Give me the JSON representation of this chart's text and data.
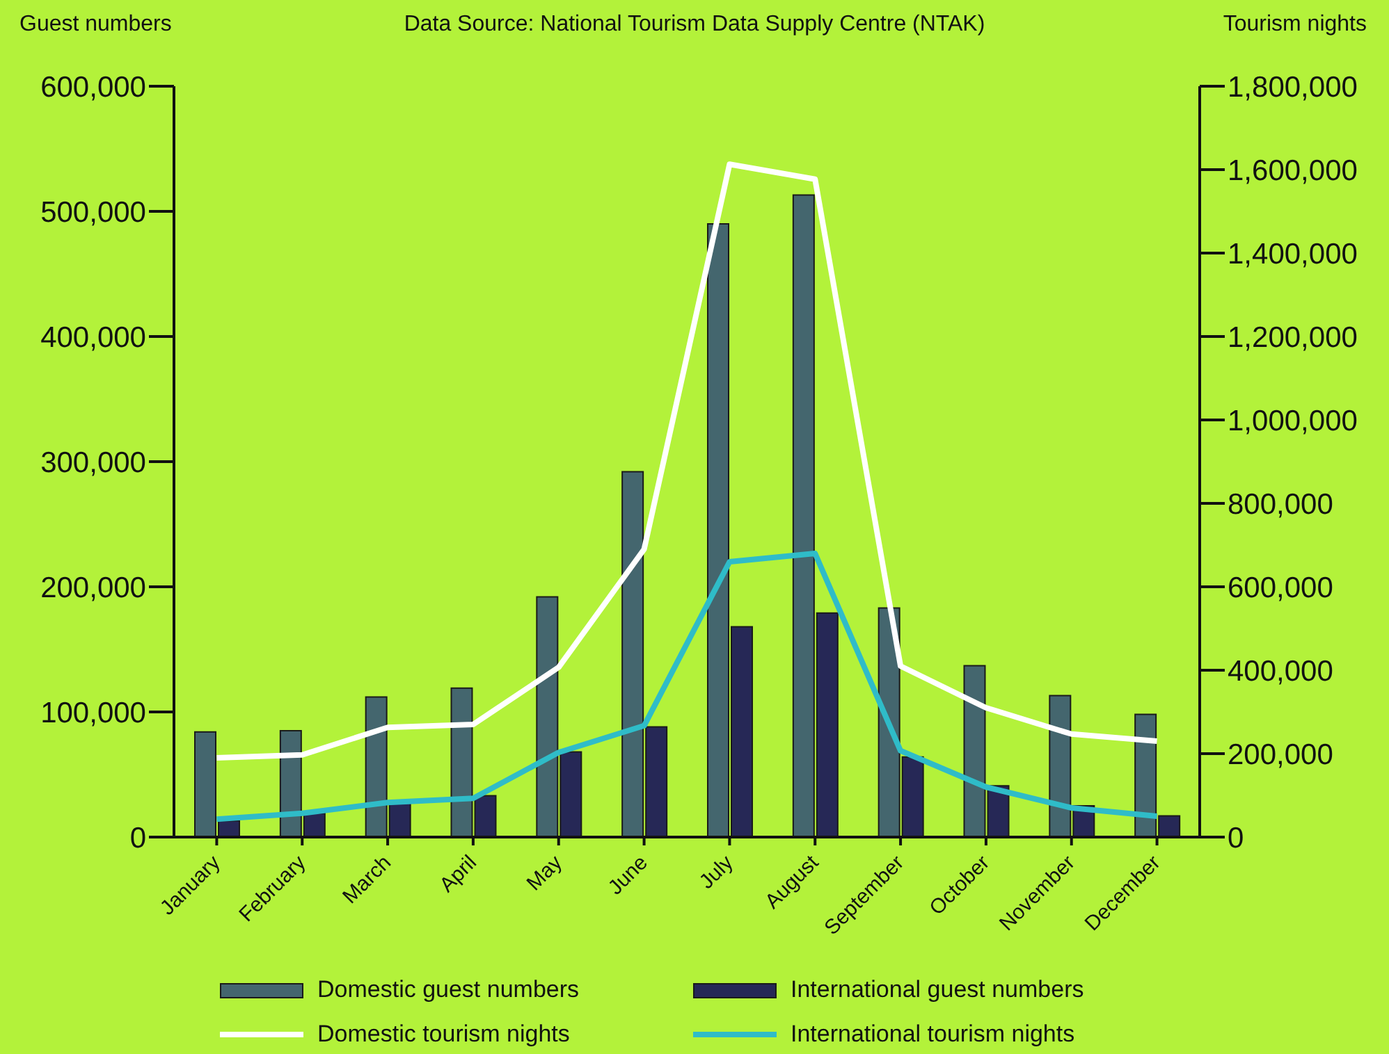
{
  "chart_data": {
    "type": "bar",
    "annotations": [
      "Data Source: National Tourism Data Supply Centre (NTAK)"
    ],
    "ylabel": "Guest numbers",
    "y2label": "Tourism nights",
    "categories": [
      "January",
      "February",
      "March",
      "April",
      "May",
      "June",
      "July",
      "August",
      "September",
      "October",
      "November",
      "December"
    ],
    "series": [
      {
        "name": "Domestic guest numbers",
        "color": "#44666e",
        "values": [
          84000,
          85000,
          112000,
          119000,
          192000,
          292000,
          490000,
          513000,
          183000,
          137000,
          113000,
          98000
        ]
      },
      {
        "name": "International guest numbers",
        "color": "#262856",
        "values": [
          13000,
          19000,
          28000,
          33000,
          68000,
          88000,
          168000,
          179000,
          64000,
          41000,
          25000,
          17000
        ]
      },
      {
        "name": "Domestic tourism nights",
        "type": "line",
        "axis": "y2",
        "color": "#ffffff",
        "values": [
          190000,
          197000,
          263000,
          270000,
          407000,
          690000,
          1613000,
          1577000,
          410000,
          310000,
          247000,
          230000
        ]
      },
      {
        "name": "International tourism nights",
        "type": "line",
        "axis": "y2",
        "color": "#2fbcc8",
        "values": [
          43000,
          57000,
          83000,
          93000,
          203000,
          267000,
          660000,
          680000,
          207000,
          120000,
          70000,
          50000
        ]
      }
    ],
    "ylim": [
      0,
      600000
    ],
    "yticks": [
      0,
      {
        "value": 100000,
        "label": "100,000"
      },
      {
        "value": 200000,
        "label": "200,000"
      },
      {
        "value": 300000,
        "label": "300,000"
      },
      {
        "value": 400000,
        "label": "400,000"
      },
      {
        "value": 500000,
        "label": "500,000"
      },
      {
        "value": 600000,
        "label": "600,000"
      }
    ],
    "y2lim": [
      0,
      1800000
    ],
    "y2ticks": [
      0,
      {
        "value": 200000,
        "label": "200,000"
      },
      {
        "value": 400000,
        "label": "400,000"
      },
      {
        "value": 600000,
        "label": "600,000"
      },
      {
        "value": 800000,
        "label": "800,000"
      },
      {
        "value": 1000000,
        "label": "1,000,000"
      },
      {
        "value": 1200000,
        "label": "1,200,000"
      },
      {
        "value": 1400000,
        "label": "1,400,000"
      },
      {
        "value": 1600000,
        "label": "1,600,000"
      },
      {
        "value": 1800000,
        "label": "1,800,000"
      }
    ],
    "legend": "bottom"
  }
}
